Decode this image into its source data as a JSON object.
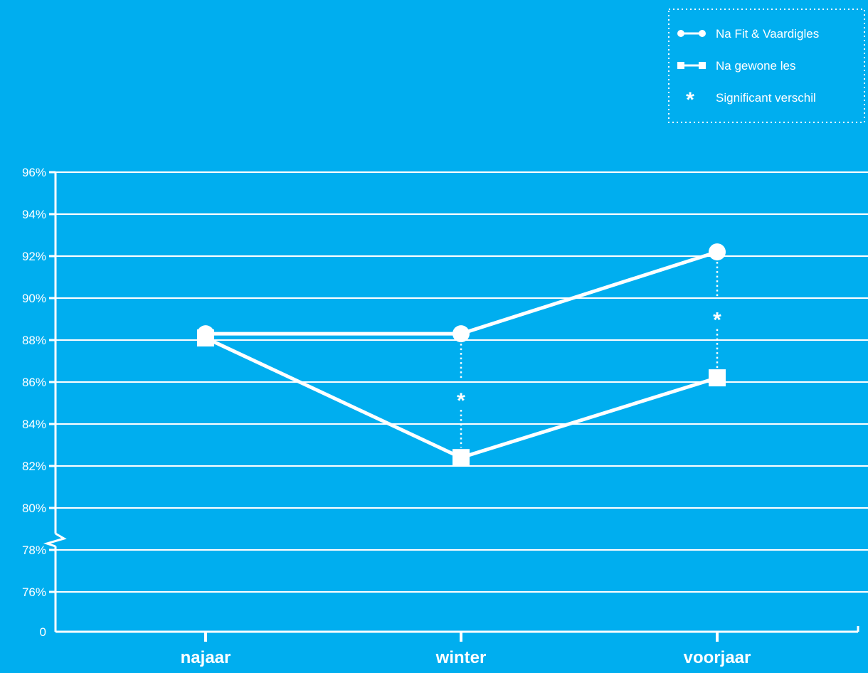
{
  "chart_data": {
    "type": "line",
    "categories": [
      "najaar",
      "winter",
      "voorjaar"
    ],
    "series": [
      {
        "name": "Na Fit & Vaardigles",
        "marker": "circle",
        "values": [
          88.3,
          88.3,
          92.2
        ]
      },
      {
        "name": "Na gewone les",
        "marker": "square",
        "values": [
          88.1,
          82.4,
          86.2
        ]
      }
    ],
    "y_ticks": [
      "0",
      "76%",
      "78%",
      "80%",
      "82%",
      "84%",
      "86%",
      "88%",
      "90%",
      "92%",
      "94%",
      "96%"
    ],
    "ylim": [
      76,
      96
    ],
    "y_axis_break": true,
    "grid": true,
    "significance": {
      "symbol": "*",
      "label": "Significant verschil",
      "categories": [
        "winter",
        "voorjaar"
      ]
    },
    "legend": {
      "position": "top-right",
      "entries": [
        "Na Fit & Vaardigles",
        "Na gewone les",
        "Significant verschil"
      ]
    }
  },
  "colors": {
    "background": "#00aeef",
    "foreground": "#ffffff"
  }
}
